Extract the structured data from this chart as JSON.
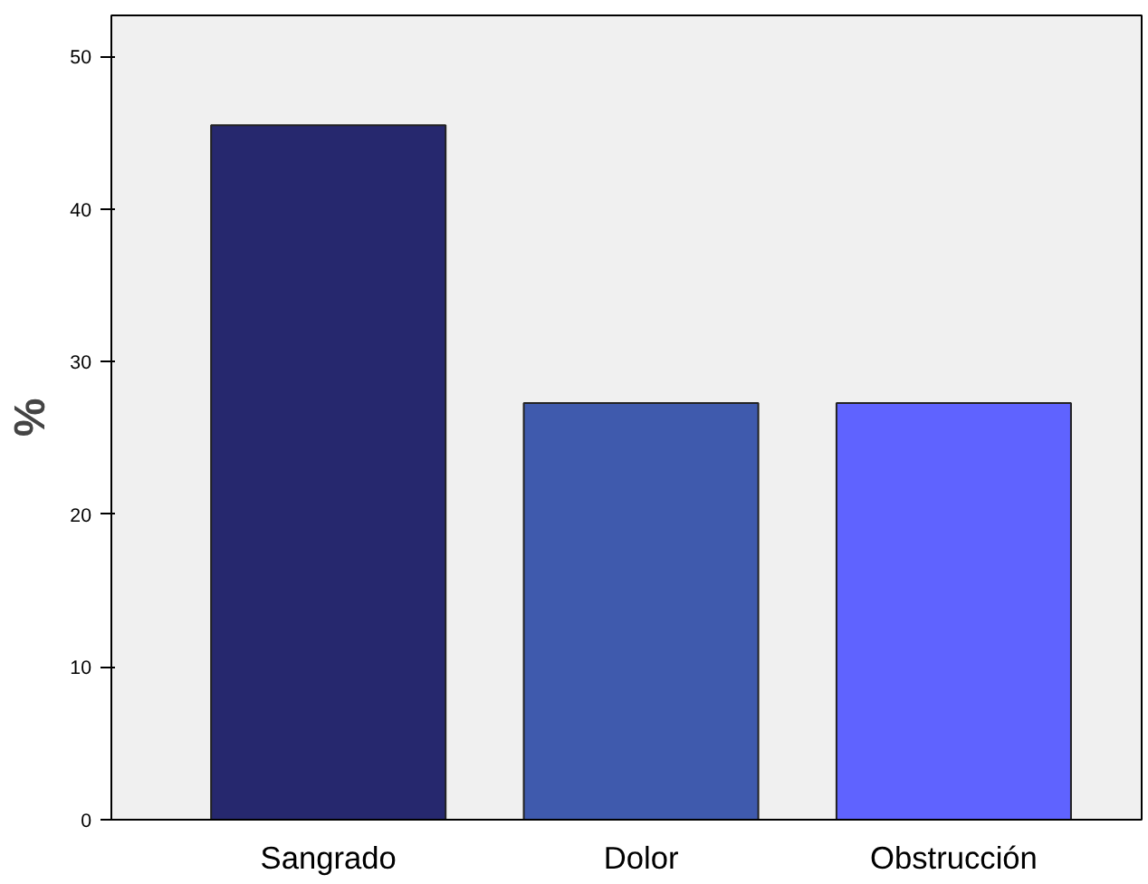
{
  "chart_data": {
    "type": "bar",
    "ylabel": "%",
    "categories": [
      "Sangrado",
      "Dolor",
      "Obstrucción"
    ],
    "values": [
      45.5,
      27.3,
      27.3
    ],
    "colors": [
      "#26286e",
      "#3f5aad",
      "#5f63ff"
    ],
    "ylim": [
      0,
      52.7
    ],
    "yticks": [
      0,
      10,
      20,
      30,
      40,
      50
    ],
    "grid": false
  }
}
